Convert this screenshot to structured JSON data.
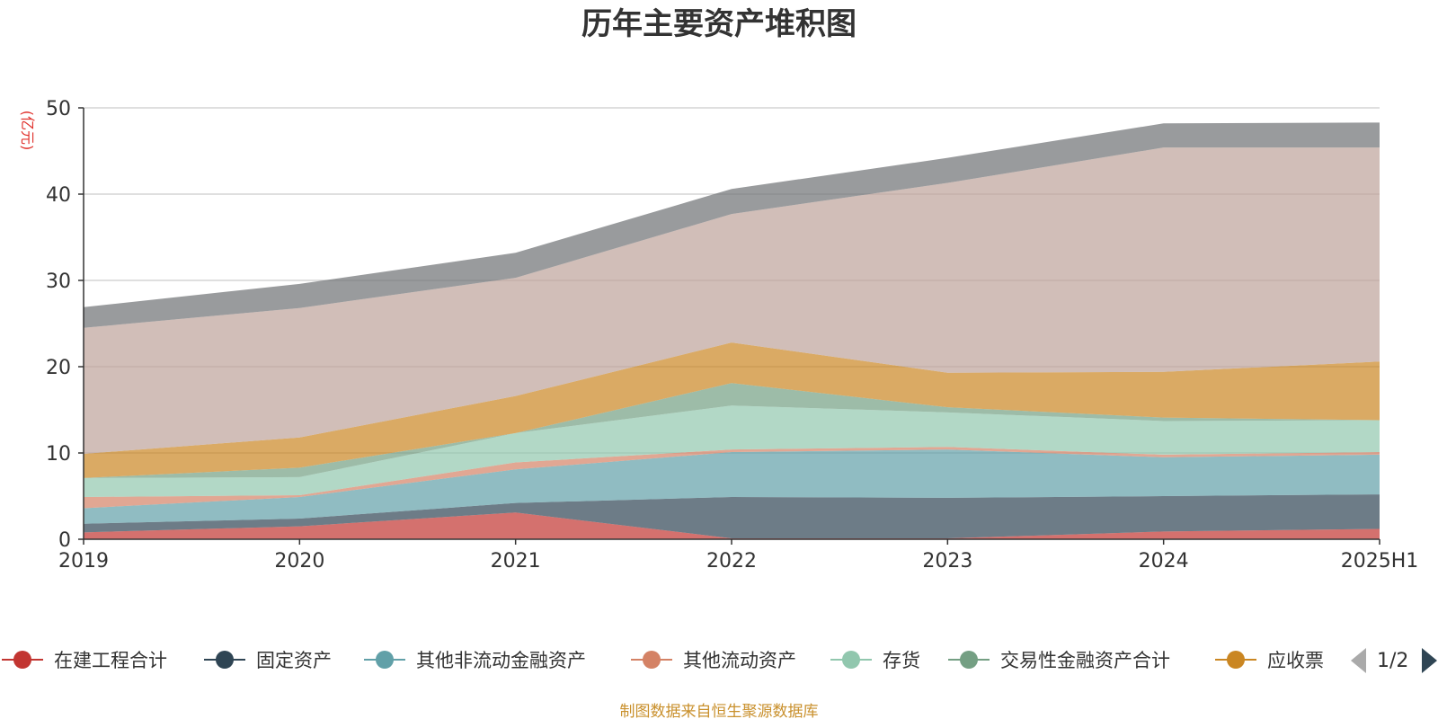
{
  "chart_data": {
    "type": "area",
    "stacked": true,
    "title": "历年主要资产堆积图",
    "ylabel": "(亿元)",
    "categories": [
      "2019",
      "2020",
      "2021",
      "2022",
      "2023",
      "2024",
      "2025H1"
    ],
    "y_ticks": [
      "0",
      "10",
      "20",
      "30",
      "40",
      "50"
    ],
    "ylim": [
      0,
      50
    ],
    "grid": true,
    "legend_position": "bottom",
    "series": [
      {
        "name": "在建工程合计",
        "color": "#c23531",
        "values": [
          0.8,
          1.5,
          3.1,
          0.1,
          0.1,
          0.9,
          1.2
        ]
      },
      {
        "name": "固定资产",
        "color": "#2f4554",
        "values": [
          1.0,
          0.9,
          1.1,
          4.8,
          4.7,
          4.1,
          4.0
        ]
      },
      {
        "name": "其他非流动金融资产",
        "color": "#61a0a8",
        "values": [
          1.8,
          2.5,
          3.9,
          5.2,
          5.6,
          4.5,
          4.6
        ]
      },
      {
        "name": "其他流动资产",
        "color": "#d48265",
        "values": [
          1.3,
          0.2,
          0.8,
          0.3,
          0.3,
          0.3,
          0.3
        ]
      },
      {
        "name": "存货",
        "color": "#91c7ae",
        "values": [
          2.2,
          2.1,
          3.4,
          5.1,
          4.0,
          3.9,
          3.7
        ]
      },
      {
        "name": "交易性金融资产合计",
        "color": "#749f83",
        "values": [
          0.0,
          1.1,
          0.0,
          2.6,
          0.6,
          0.4,
          0.0
        ]
      },
      {
        "name": "应收票",
        "color": "#ca8622",
        "values": [
          2.8,
          3.5,
          4.3,
          4.7,
          4.0,
          5.3,
          6.8
        ]
      },
      {
        "name": "",
        "color": "#bda29a",
        "values": [
          14.6,
          15.0,
          13.7,
          14.9,
          22.0,
          26.0,
          24.8
        ]
      },
      {
        "name": "",
        "color": "#6e7074",
        "values": [
          2.4,
          2.8,
          2.9,
          2.9,
          2.9,
          2.8,
          2.9
        ]
      }
    ]
  },
  "legend": {
    "page_indicator": "1/2",
    "icons": {
      "prev": "triangle-left-icon",
      "next": "triangle-right-icon"
    }
  },
  "footer": {
    "source": "制图数据来自恒生聚源数据库"
  }
}
